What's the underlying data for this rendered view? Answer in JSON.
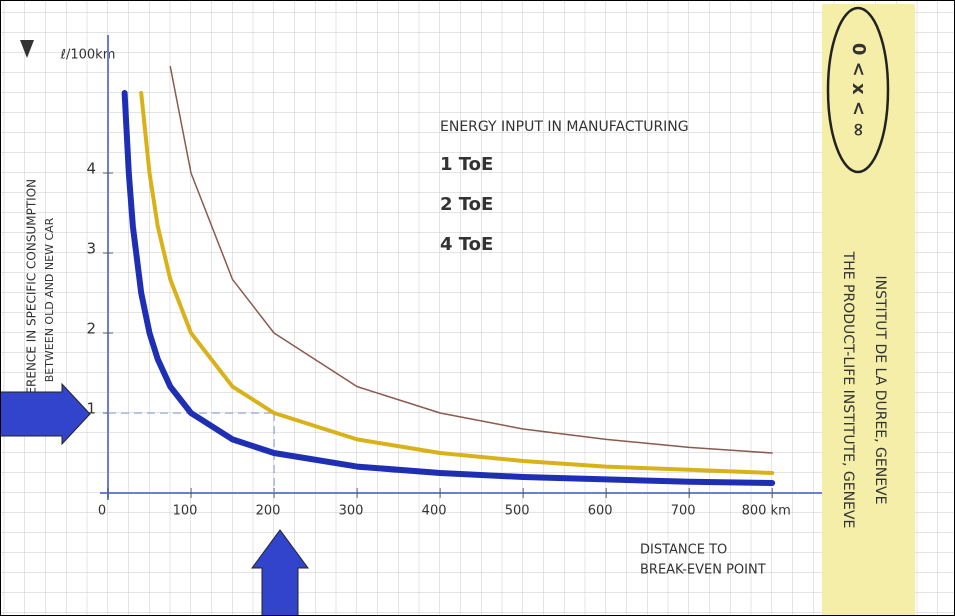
{
  "chart_data": {
    "type": "line",
    "y_unit_label": "ℓ/100km",
    "y_axis_label": [
      "DIFFERENCE IN SPECIFIC CONSUMPTION",
      "BETWEEN OLD AND NEW CAR"
    ],
    "x_axis_label": [
      "DISTANCE TO",
      "BREAK-EVEN POINT"
    ],
    "legend_title": "ENERGY INPUT IN MANUFACTURING",
    "x": [
      20,
      25,
      30,
      40,
      50,
      60,
      75,
      100,
      150,
      200,
      300,
      400,
      500,
      600,
      700,
      800
    ],
    "series": [
      {
        "name": "1 ToE",
        "color": "#1f2fb4",
        "values": [
          5,
          4,
          3.33,
          2.5,
          2,
          1.67,
          1.33,
          1,
          0.67,
          0.5,
          0.33,
          0.25,
          0.2,
          0.17,
          0.14,
          0.125
        ]
      },
      {
        "name": "2 ToE",
        "color": "#d9b21a",
        "values": [
          null,
          null,
          null,
          5,
          4,
          3.33,
          2.67,
          2,
          1.33,
          1,
          0.67,
          0.5,
          0.4,
          0.33,
          0.29,
          0.25
        ]
      },
      {
        "name": "4 ToE",
        "color": "#8b5a4c",
        "values": [
          null,
          null,
          null,
          null,
          null,
          null,
          5.33,
          4,
          2.67,
          2,
          1.33,
          1,
          0.8,
          0.67,
          0.57,
          0.5
        ]
      }
    ],
    "guide": {
      "x": 200,
      "y": 1
    },
    "xlim": [
      0,
      860
    ],
    "ylim": [
      0,
      5.65
    ],
    "xticks": [
      0,
      100,
      200,
      300,
      400,
      500,
      600,
      700,
      {
        "value": 800,
        "label": "800 km"
      }
    ],
    "yticks": [
      1,
      2,
      3,
      4
    ]
  },
  "sidebar": {
    "logo": "0 < x < ∞",
    "line1": "INSTITUT DE LA DUREE, GENEVE",
    "line2": "THE PRODUCT-LIFE INSTITUTE, GENEVE"
  }
}
